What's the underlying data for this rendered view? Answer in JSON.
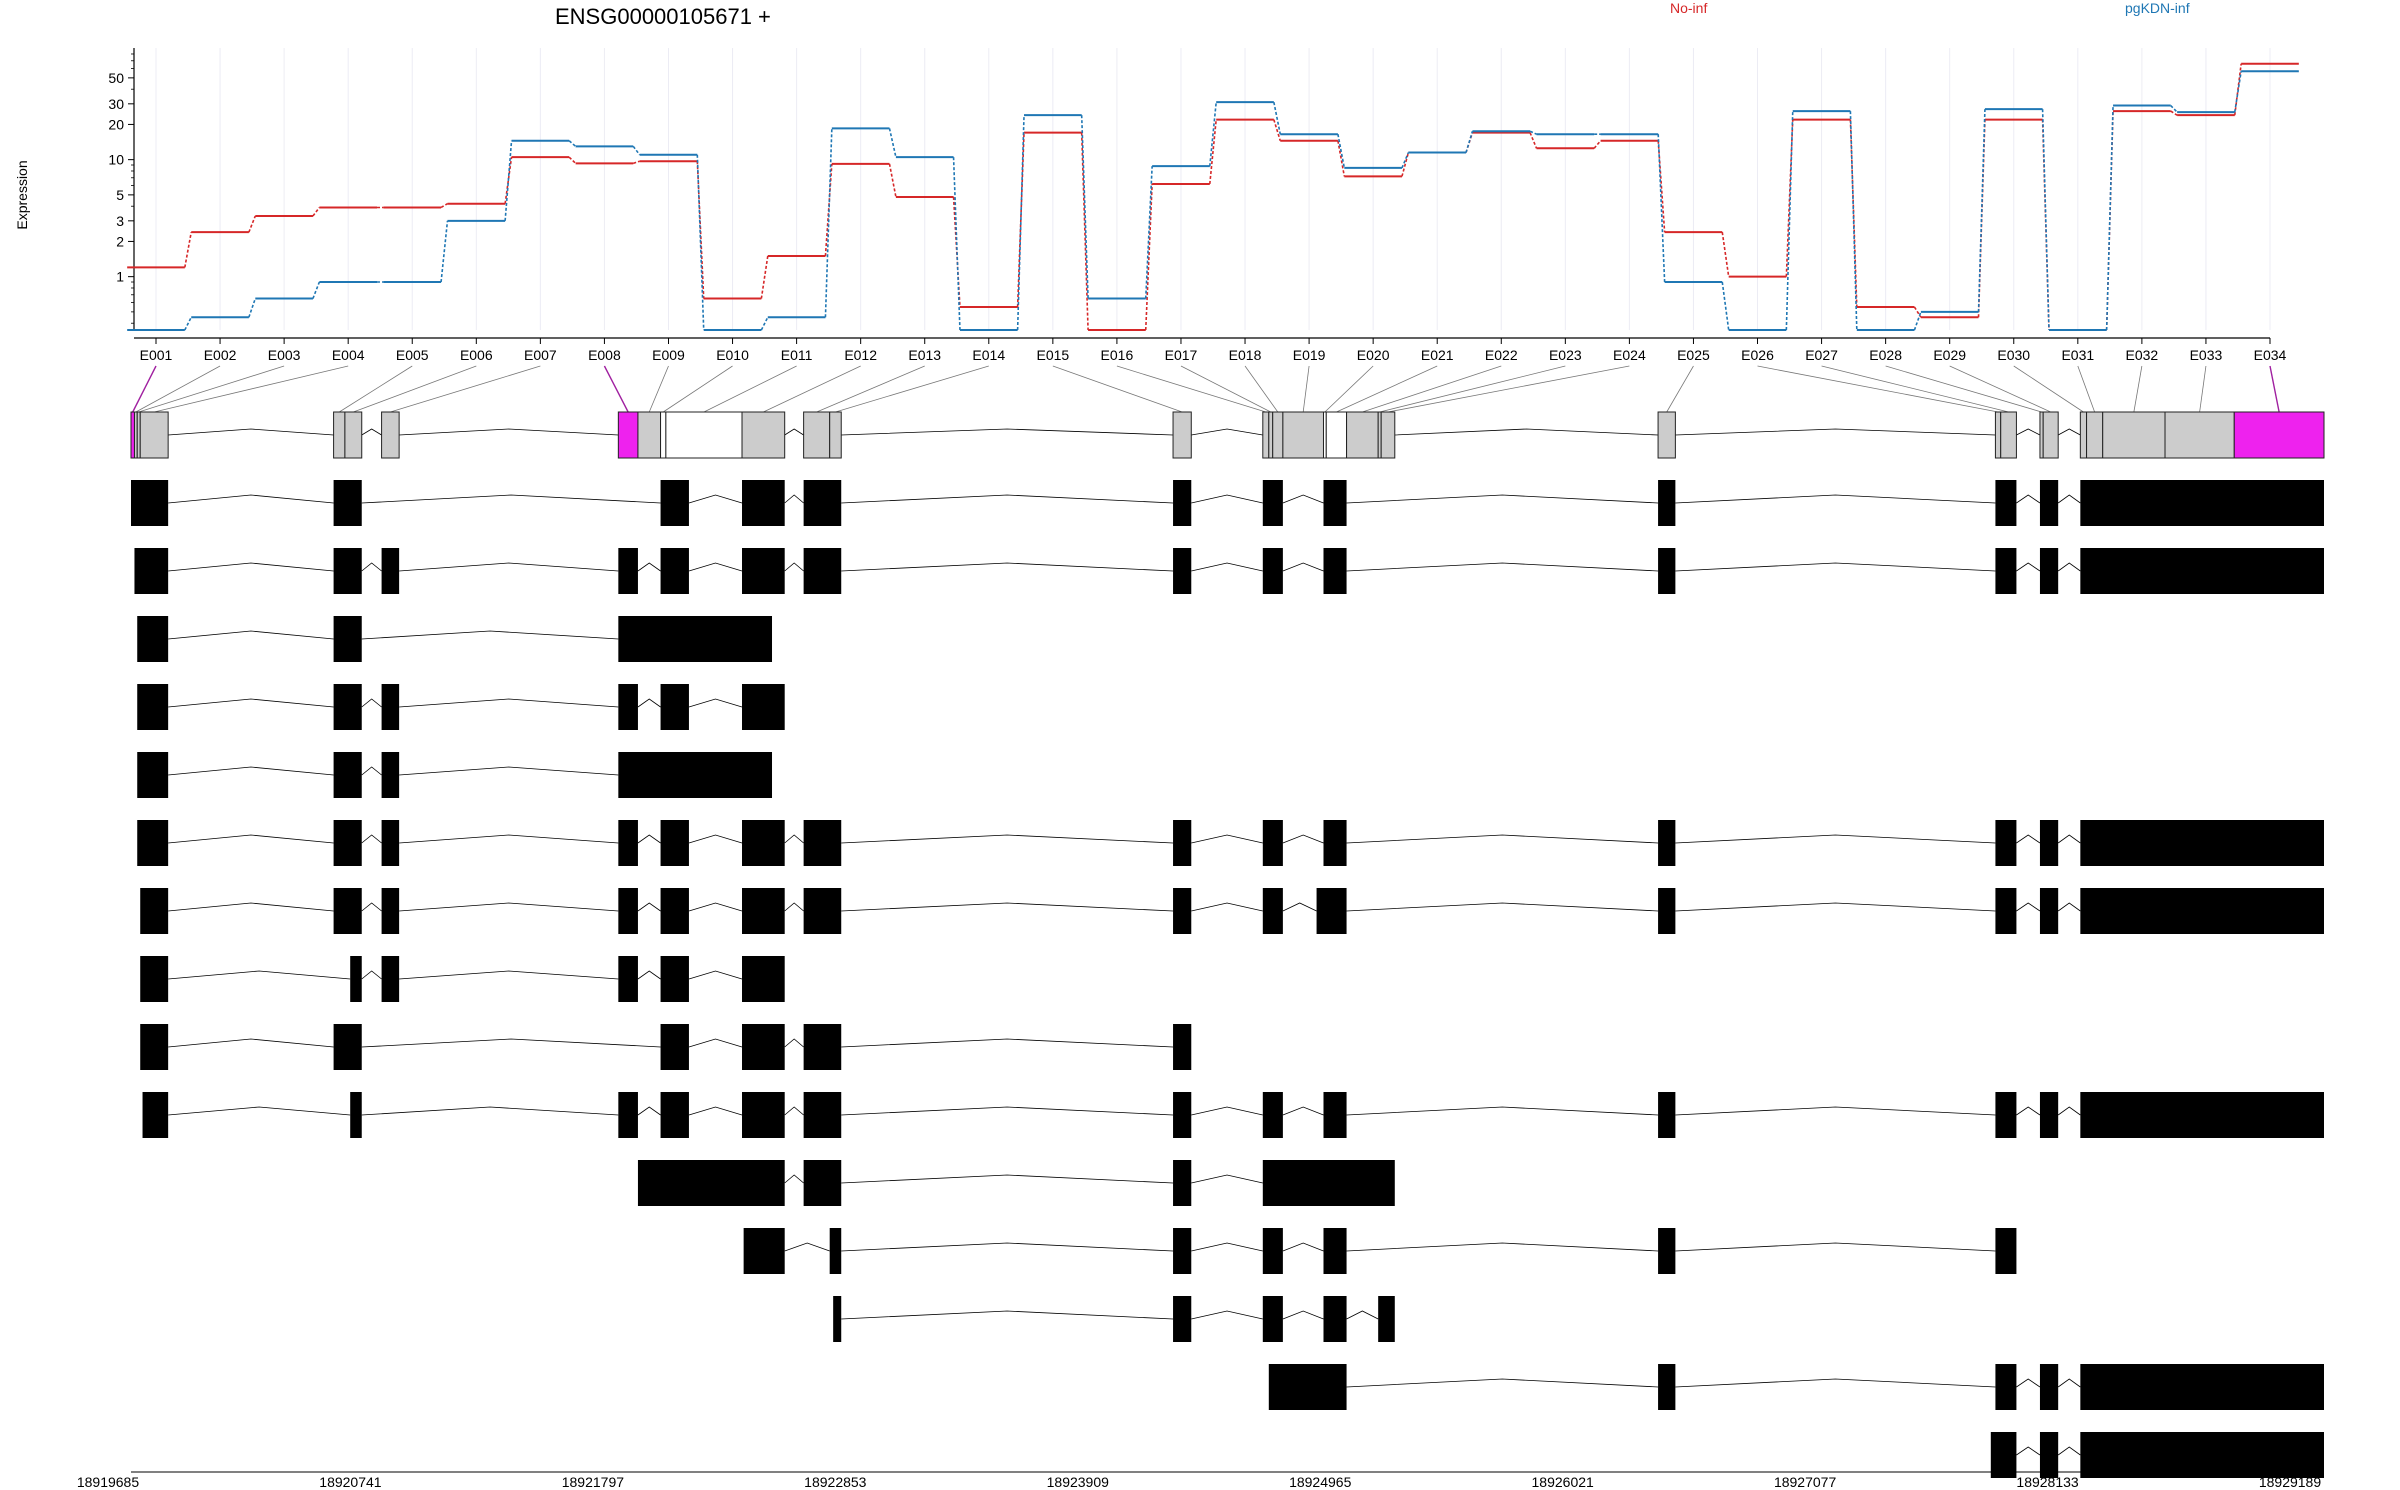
{
  "chart_data": {
    "type": "line",
    "title": "ENSG00000105671 +",
    "ylabel": "Expression",
    "yscale": "log",
    "yticks": [
      1,
      2,
      3,
      5,
      10,
      20,
      30,
      50
    ],
    "ylim": [
      0.35,
      90
    ],
    "x": [
      "E001",
      "E002",
      "E003",
      "E004",
      "E005",
      "E006",
      "E007",
      "E008",
      "E009",
      "E010",
      "E011",
      "E012",
      "E013",
      "E014",
      "E015",
      "E016",
      "E017",
      "E018",
      "E019",
      "E020",
      "E021",
      "E022",
      "E023",
      "E024",
      "E025",
      "E026",
      "E027",
      "E028",
      "E029",
      "E030",
      "E031",
      "E032",
      "E033",
      "E034"
    ],
    "series": [
      {
        "name": "No-inf",
        "color": "#d62728",
        "values": [
          1.2,
          2.4,
          3.3,
          3.9,
          3.9,
          4.2,
          10.5,
          9.3,
          9.7,
          0.65,
          1.5,
          9.2,
          4.8,
          0.55,
          17,
          0.35,
          6.2,
          22,
          14.5,
          7.2,
          11.5,
          17,
          12.5,
          14.5,
          2.4,
          1,
          22,
          0.55,
          0.45,
          22,
          0.35,
          26,
          24,
          66
        ]
      },
      {
        "name": "pgKDN-inf",
        "color": "#1f77b4",
        "values": [
          0.35,
          0.45,
          0.65,
          0.9,
          0.9,
          3,
          14.5,
          13,
          11,
          0.35,
          0.45,
          18.5,
          10.5,
          0.35,
          24,
          0.65,
          8.8,
          31,
          16.5,
          8.5,
          11.5,
          17.5,
          16.5,
          16.5,
          0.9,
          0.35,
          26,
          0.35,
          0.5,
          27,
          0.35,
          29,
          25.5,
          57
        ]
      }
    ],
    "legend": [
      "No-inf",
      "pgKDN-inf"
    ],
    "legend_placement": "top-right",
    "gene_model": {
      "x_tick_labels": [
        "18919685",
        "18920741",
        "18921797",
        "18922853",
        "18923909",
        "18924965",
        "18926021",
        "18927077",
        "18928133",
        "18929189"
      ],
      "genomic_range": [
        18919685,
        18929189
      ],
      "highlight_color": "#ee22ee",
      "highlighted_exons": [
        "E001",
        "E008",
        "E034"
      ],
      "exon_bins": [
        [
          18919685,
          18919700
        ],
        [
          18919700,
          18919712
        ],
        [
          18919712,
          18919725
        ],
        [
          18919725,
          18919846
        ],
        [
          18920563,
          18920612
        ],
        [
          18920612,
          18920685
        ],
        [
          18920771,
          18920847
        ],
        [
          18921797,
          18921882
        ],
        [
          18921882,
          18921980
        ],
        [
          18921980,
          18922003
        ],
        [
          18922003,
          18922333
        ],
        [
          18922333,
          18922518
        ],
        [
          18922600,
          18922713
        ],
        [
          18922713,
          18922763
        ],
        [
          18924201,
          18924280
        ],
        [
          18924590,
          18924616
        ],
        [
          18924616,
          18924633
        ],
        [
          18924633,
          18924677
        ],
        [
          18924677,
          18924853
        ],
        [
          18924853,
          18924865
        ],
        [
          18924865,
          18924953
        ],
        [
          18924953,
          18925090
        ],
        [
          18925090,
          18925103
        ],
        [
          18925103,
          18925162
        ],
        [
          18926303,
          18926378
        ],
        [
          18927765,
          18927788
        ],
        [
          18927788,
          18927856
        ],
        [
          18927958,
          18927972
        ],
        [
          18927972,
          18928037
        ],
        [
          18928133,
          18928160
        ],
        [
          18928160,
          18928230
        ],
        [
          18928230,
          18928500
        ],
        [
          18928500,
          18928800
        ],
        [
          18928800,
          18929189
        ]
      ],
      "transcripts": [
        [
          [
            18919685,
            18919846
          ],
          [
            18920563,
            18920685
          ],
          [
            18921980,
            18922103
          ],
          [
            18922333,
            18922518
          ],
          [
            18922600,
            18922763
          ],
          [
            18924201,
            18924280
          ],
          [
            18924590,
            18924677
          ],
          [
            18924853,
            18924953
          ],
          [
            18926303,
            18926378
          ],
          [
            18927765,
            18927856
          ],
          [
            18927958,
            18928037
          ],
          [
            18928133,
            18929189
          ]
        ],
        [
          [
            18919700,
            18919846
          ],
          [
            18920563,
            18920685
          ],
          [
            18920771,
            18920847
          ],
          [
            18921797,
            18921882
          ],
          [
            18921980,
            18922103
          ],
          [
            18922333,
            18922518
          ],
          [
            18922600,
            18922763
          ],
          [
            18924201,
            18924280
          ],
          [
            18924590,
            18924677
          ],
          [
            18924853,
            18924953
          ],
          [
            18926303,
            18926378
          ],
          [
            18927765,
            18927856
          ],
          [
            18927958,
            18928037
          ],
          [
            18928133,
            18929189
          ]
        ],
        [
          [
            18919712,
            18919846
          ],
          [
            18920563,
            18920685
          ],
          [
            18921797,
            18922463
          ]
        ],
        [
          [
            18919712,
            18919846
          ],
          [
            18920563,
            18920685
          ],
          [
            18920771,
            18920847
          ],
          [
            18921797,
            18921882
          ],
          [
            18921980,
            18922103
          ],
          [
            18922333,
            18922518
          ]
        ],
        [
          [
            18919712,
            18919846
          ],
          [
            18920563,
            18920685
          ],
          [
            18920771,
            18920847
          ],
          [
            18921797,
            18922463
          ]
        ],
        [
          [
            18919712,
            18919846
          ],
          [
            18920563,
            18920685
          ],
          [
            18920771,
            18920847
          ],
          [
            18921797,
            18921882
          ],
          [
            18921980,
            18922103
          ],
          [
            18922333,
            18922518
          ],
          [
            18922600,
            18922763
          ],
          [
            18924201,
            18924280
          ],
          [
            18924590,
            18924677
          ],
          [
            18924853,
            18924953
          ],
          [
            18926303,
            18926378
          ],
          [
            18927765,
            18927856
          ],
          [
            18927958,
            18928037
          ],
          [
            18928133,
            18929189
          ]
        ],
        [
          [
            18919725,
            18919846
          ],
          [
            18920563,
            18920685
          ],
          [
            18920771,
            18920847
          ],
          [
            18921797,
            18921882
          ],
          [
            18921980,
            18922103
          ],
          [
            18922333,
            18922518
          ],
          [
            18922600,
            18922763
          ],
          [
            18924201,
            18924280
          ],
          [
            18924590,
            18924677
          ],
          [
            18924823,
            18924953
          ],
          [
            18926303,
            18926378
          ],
          [
            18927765,
            18927856
          ],
          [
            18927958,
            18928037
          ],
          [
            18928133,
            18929189
          ]
        ],
        [
          [
            18919725,
            18919846
          ],
          [
            18920635,
            18920685
          ],
          [
            18920771,
            18920847
          ],
          [
            18921797,
            18921882
          ],
          [
            18921980,
            18922103
          ],
          [
            18922333,
            18922518
          ]
        ],
        [
          [
            18919725,
            18919846
          ],
          [
            18920563,
            18920685
          ],
          [
            18921980,
            18922103
          ],
          [
            18922333,
            18922518
          ],
          [
            18922600,
            18922763
          ],
          [
            18924201,
            18924280
          ]
        ],
        [
          [
            18919735,
            18919846
          ],
          [
            18920635,
            18920685
          ],
          [
            18921797,
            18921882
          ],
          [
            18921980,
            18922103
          ],
          [
            18922333,
            18922518
          ],
          [
            18922600,
            18922763
          ],
          [
            18924201,
            18924280
          ],
          [
            18924590,
            18924677
          ],
          [
            18924853,
            18924953
          ],
          [
            18926303,
            18926378
          ],
          [
            18927765,
            18927856
          ],
          [
            18927958,
            18928037
          ],
          [
            18928133,
            18929189
          ]
        ],
        [
          [
            18921882,
            18922518
          ],
          [
            18922600,
            18922763
          ],
          [
            18924201,
            18924280
          ],
          [
            18924590,
            18925162
          ]
        ],
        [
          [
            18922340,
            18922518
          ],
          [
            18922713,
            18922763
          ],
          [
            18924201,
            18924280
          ],
          [
            18924590,
            18924677
          ],
          [
            18924853,
            18924953
          ],
          [
            18926303,
            18926378
          ],
          [
            18927765,
            18927856
          ]
        ],
        [
          [
            18922728,
            18922763
          ],
          [
            18924201,
            18924280
          ],
          [
            18924590,
            18924677
          ],
          [
            18924853,
            18924953
          ],
          [
            18925090,
            18925162
          ]
        ],
        [
          [
            18924616,
            18924953
          ],
          [
            18926303,
            18926378
          ],
          [
            18927765,
            18927856
          ],
          [
            18927958,
            18928037
          ],
          [
            18928133,
            18929189
          ]
        ],
        [
          [
            18927745,
            18927856
          ],
          [
            18927958,
            18928037
          ],
          [
            18928133,
            18929189
          ]
        ]
      ]
    }
  }
}
